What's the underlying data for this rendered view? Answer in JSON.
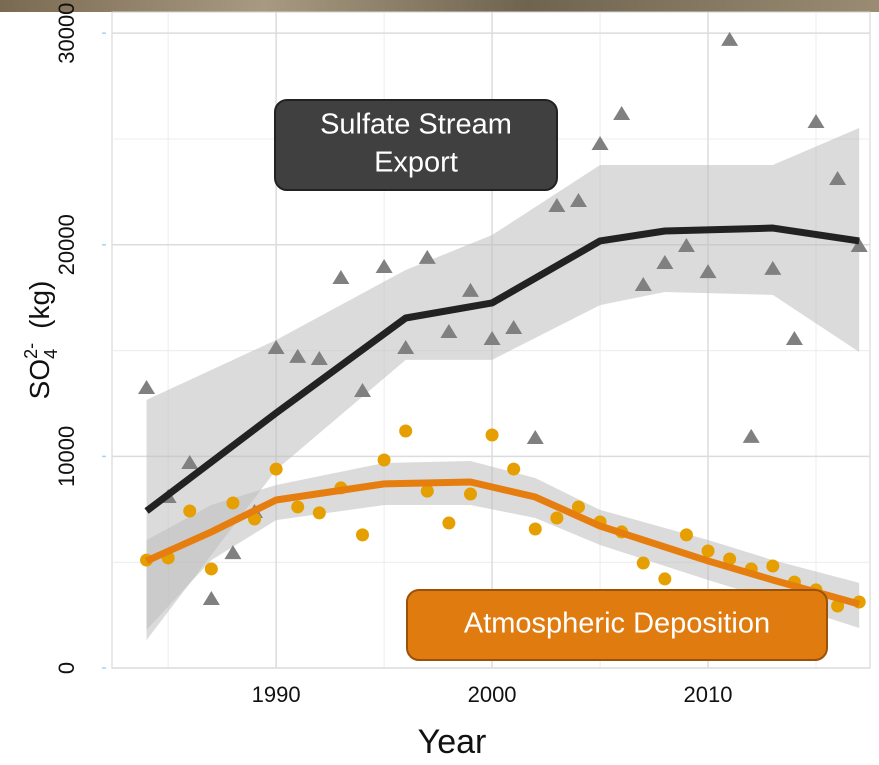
{
  "chart_data": {
    "type": "scatter",
    "x_label": "Year",
    "y_label": {
      "base": "SO",
      "subscript": "4",
      "superscript": "2-",
      "unit": "(kg)"
    },
    "xlim": [
      1982.4,
      2017.5
    ],
    "xticks": [
      1990,
      2000,
      2010
    ],
    "ylim": [
      0,
      31000
    ],
    "yticks": [
      0,
      10000,
      20000,
      30000
    ],
    "grid": true,
    "x": [
      1984,
      1985,
      1986,
      1987,
      1988,
      1989,
      1990,
      1991,
      1992,
      1993,
      1994,
      1995,
      1996,
      1997,
      1998,
      1999,
      2000,
      2001,
      2002,
      2003,
      2004,
      2005,
      2006,
      2007,
      2008,
      2009,
      2010,
      2011,
      2012,
      2013,
      2014,
      2015,
      2016,
      2017
    ],
    "series": [
      {
        "color": "#808080",
        "marker": "triangle",
        "values": [
          13230,
          8080,
          9690,
          3260,
          5430,
          7370,
          15120,
          14700,
          14600,
          18430,
          13090,
          18950,
          15120,
          19380,
          15880,
          17820,
          15550,
          16070,
          10870,
          21830,
          22070,
          24760,
          26180,
          18100,
          19140,
          19940,
          18710,
          29680,
          10920,
          18860,
          15550,
          25800,
          23110,
          19940
        ],
        "fit": {
          "color": "#222222",
          "x": [
            1984,
            1990,
            1996,
            2000,
            2005,
            2008,
            2013,
            2017
          ],
          "values": [
            7420,
            12050,
            16540,
            17250,
            20180,
            20650,
            20790,
            20180
          ],
          "lower": [
            1320,
            9360,
            14560,
            14560,
            17150,
            17770,
            17630,
            14930
          ],
          "upper": [
            12670,
            15500,
            18810,
            20460,
            23770,
            23770,
            23770,
            25520
          ]
        },
        "annotation": {
          "lines": [
            "Sulfate Stream",
            "Export"
          ],
          "fill": "#404040",
          "text_color": "#ffffff"
        }
      },
      {
        "color": "#e69f00",
        "marker": "circle",
        "values": [
          5100,
          5200,
          7420,
          4680,
          7800,
          7040,
          9400,
          7610,
          7330,
          8510,
          6290,
          9830,
          11200,
          8360,
          6850,
          8220,
          11010,
          9400,
          6570,
          7090,
          7610,
          6900,
          6430,
          4960,
          4210,
          6290,
          5530,
          5150,
          4680,
          4820,
          4060,
          3690,
          2930,
          3120
        ],
        "fit": {
          "color": "#e67e0f",
          "x": [
            1984,
            1987,
            1990,
            1995,
            1999,
            2002,
            2005,
            2010,
            2013,
            2017
          ],
          "values": [
            5060,
            6430,
            7940,
            8700,
            8790,
            8080,
            6710,
            5060,
            4160,
            3020
          ],
          "lower": [
            1800,
            5100,
            6990,
            7700,
            7700,
            7090,
            5810,
            4160,
            3210,
            1890
          ],
          "upper": [
            6050,
            7700,
            8650,
            9690,
            9780,
            8980,
            7470,
            6050,
            5100,
            4020
          ]
        },
        "annotation": {
          "lines": [
            "Atmospheric Deposition"
          ],
          "fill": "#e07b10",
          "text_color": "#ffffff"
        }
      }
    ]
  }
}
